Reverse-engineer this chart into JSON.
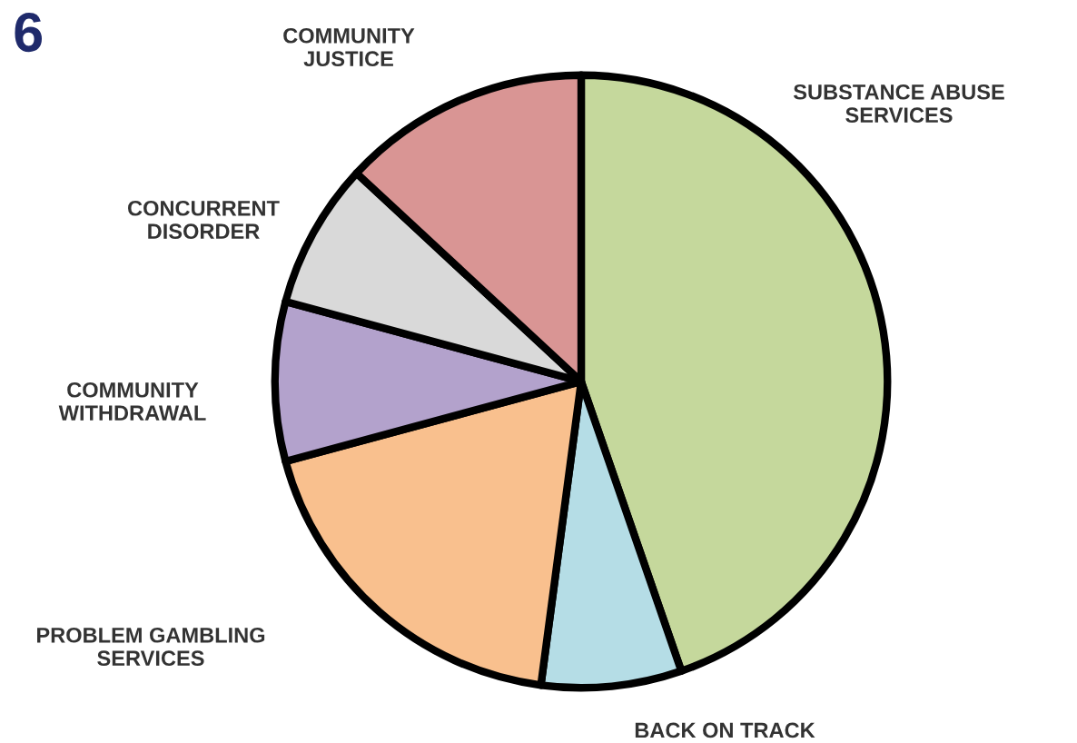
{
  "chart_data": {
    "type": "pie",
    "categories": [
      "SUBSTANCE ABUSE\nSERVICES",
      "BACK ON TRACK",
      "PROBLEM GAMBLING\nSERVICES",
      "COMMUNITY\nWITHDRAWAL",
      "CONCURRENT\nDISORDER",
      "COMMUNITY\nJUSTICE"
    ],
    "values": [
      44.7,
      7.4,
      18.7,
      8.4,
      7.7,
      13.1
    ],
    "colors": [
      "#c5d89c",
      "#b5dde6",
      "#f9c08e",
      "#b3a2cc",
      "#d9d9d9",
      "#d99594"
    ],
    "annotations": [
      "6"
    ],
    "legend": false
  }
}
